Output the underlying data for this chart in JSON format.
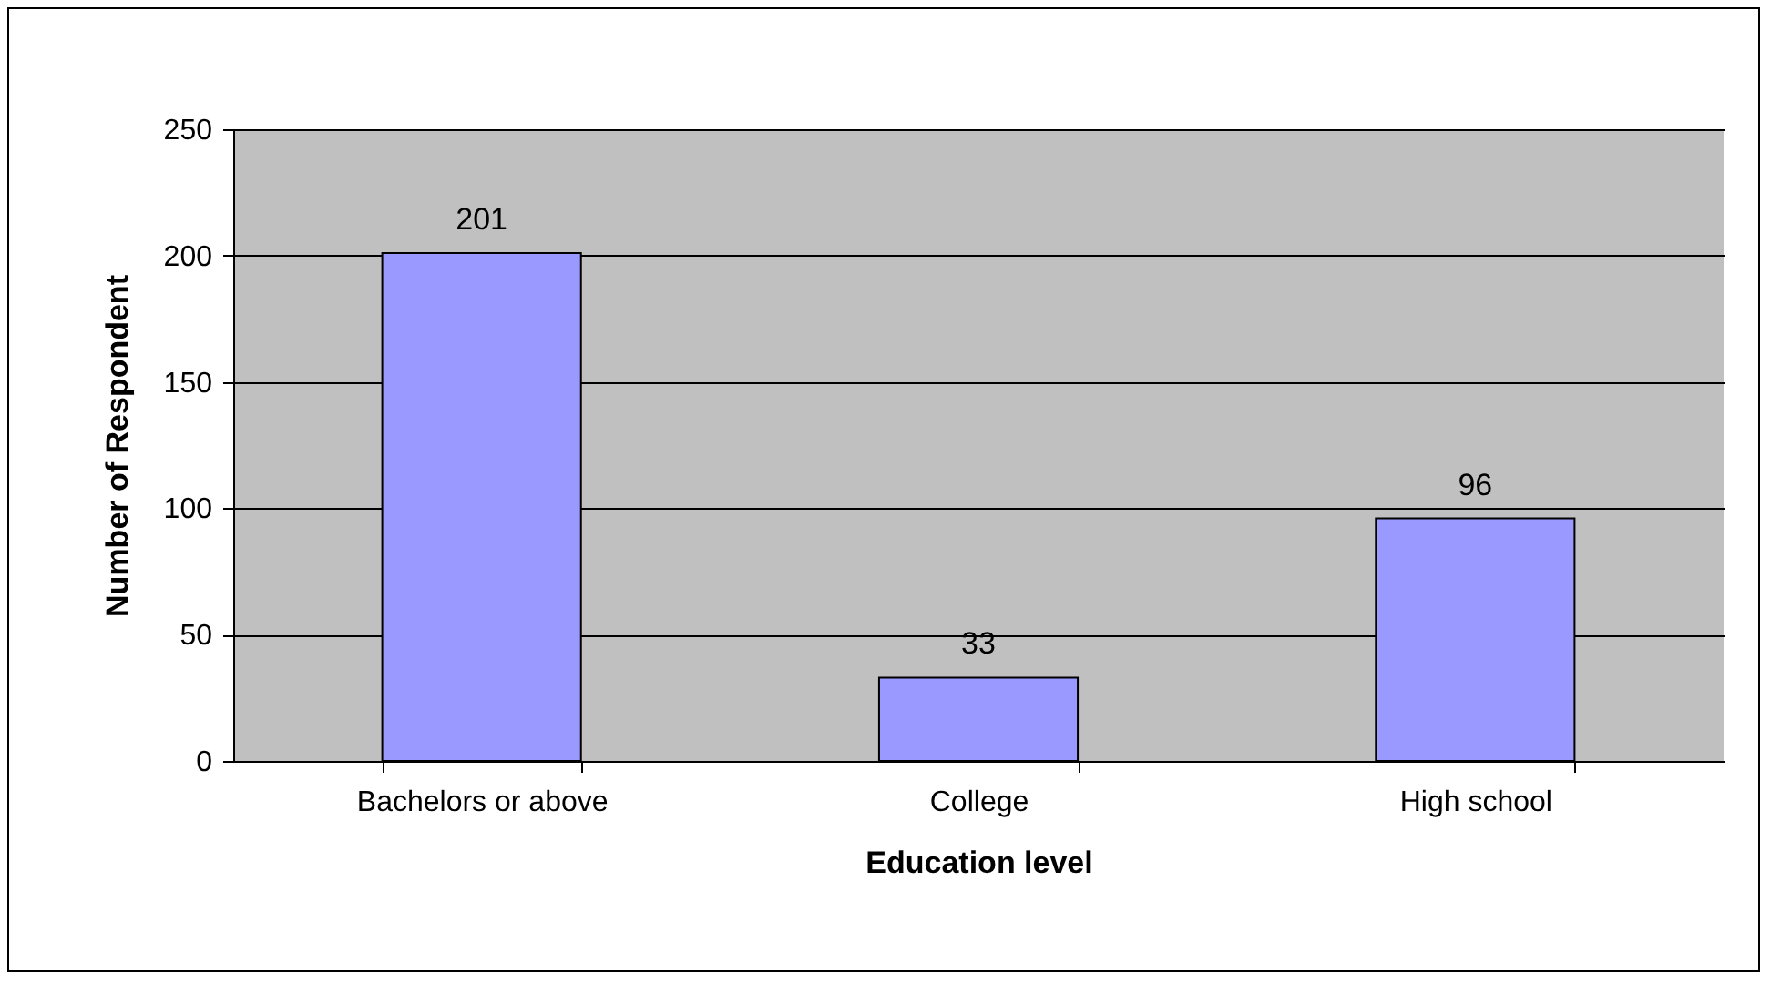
{
  "chart_data": {
    "type": "bar",
    "xlabel": "Education level",
    "ylabel": "Number of Respondent",
    "categories": [
      "Bachelors or above",
      "College",
      "High school"
    ],
    "values": [
      201,
      33,
      96
    ],
    "color": "#9999ff",
    "ylim": [
      0,
      250
    ],
    "yticks": [
      0,
      50,
      100,
      150,
      200,
      250
    ],
    "grid": "y",
    "data_labels": true
  }
}
